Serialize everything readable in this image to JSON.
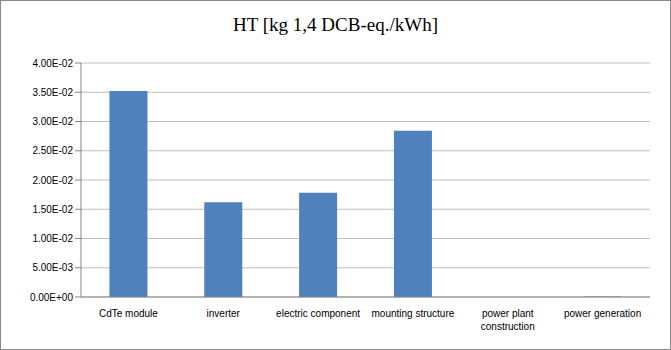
{
  "chart_data": {
    "type": "bar",
    "title": "HT [kg 1,4 DCB-eq./kWh]",
    "categories": [
      "CdTe module",
      "inverter",
      "electric component",
      "mounting structure",
      "power plant construction",
      "power generation"
    ],
    "values": [
      0.0352,
      0.0162,
      0.0178,
      0.0284,
      0,
      0.0001
    ],
    "color": "#4f81bd",
    "ylim": [
      0,
      0.04
    ],
    "yticks": [
      {
        "value": 0,
        "label": "0.00E+00"
      },
      {
        "value": 0.005,
        "label": "5.00E-03"
      },
      {
        "value": 0.01,
        "label": "1.00E-02"
      },
      {
        "value": 0.015,
        "label": "1.50E-02"
      },
      {
        "value": 0.02,
        "label": "2.00E-02"
      },
      {
        "value": 0.025,
        "label": "2.50E-02"
      },
      {
        "value": 0.03,
        "label": "3.00E-02"
      },
      {
        "value": 0.035,
        "label": "3.50E-02"
      },
      {
        "value": 0.04,
        "label": "4.00E-02"
      }
    ],
    "grid": true
  }
}
